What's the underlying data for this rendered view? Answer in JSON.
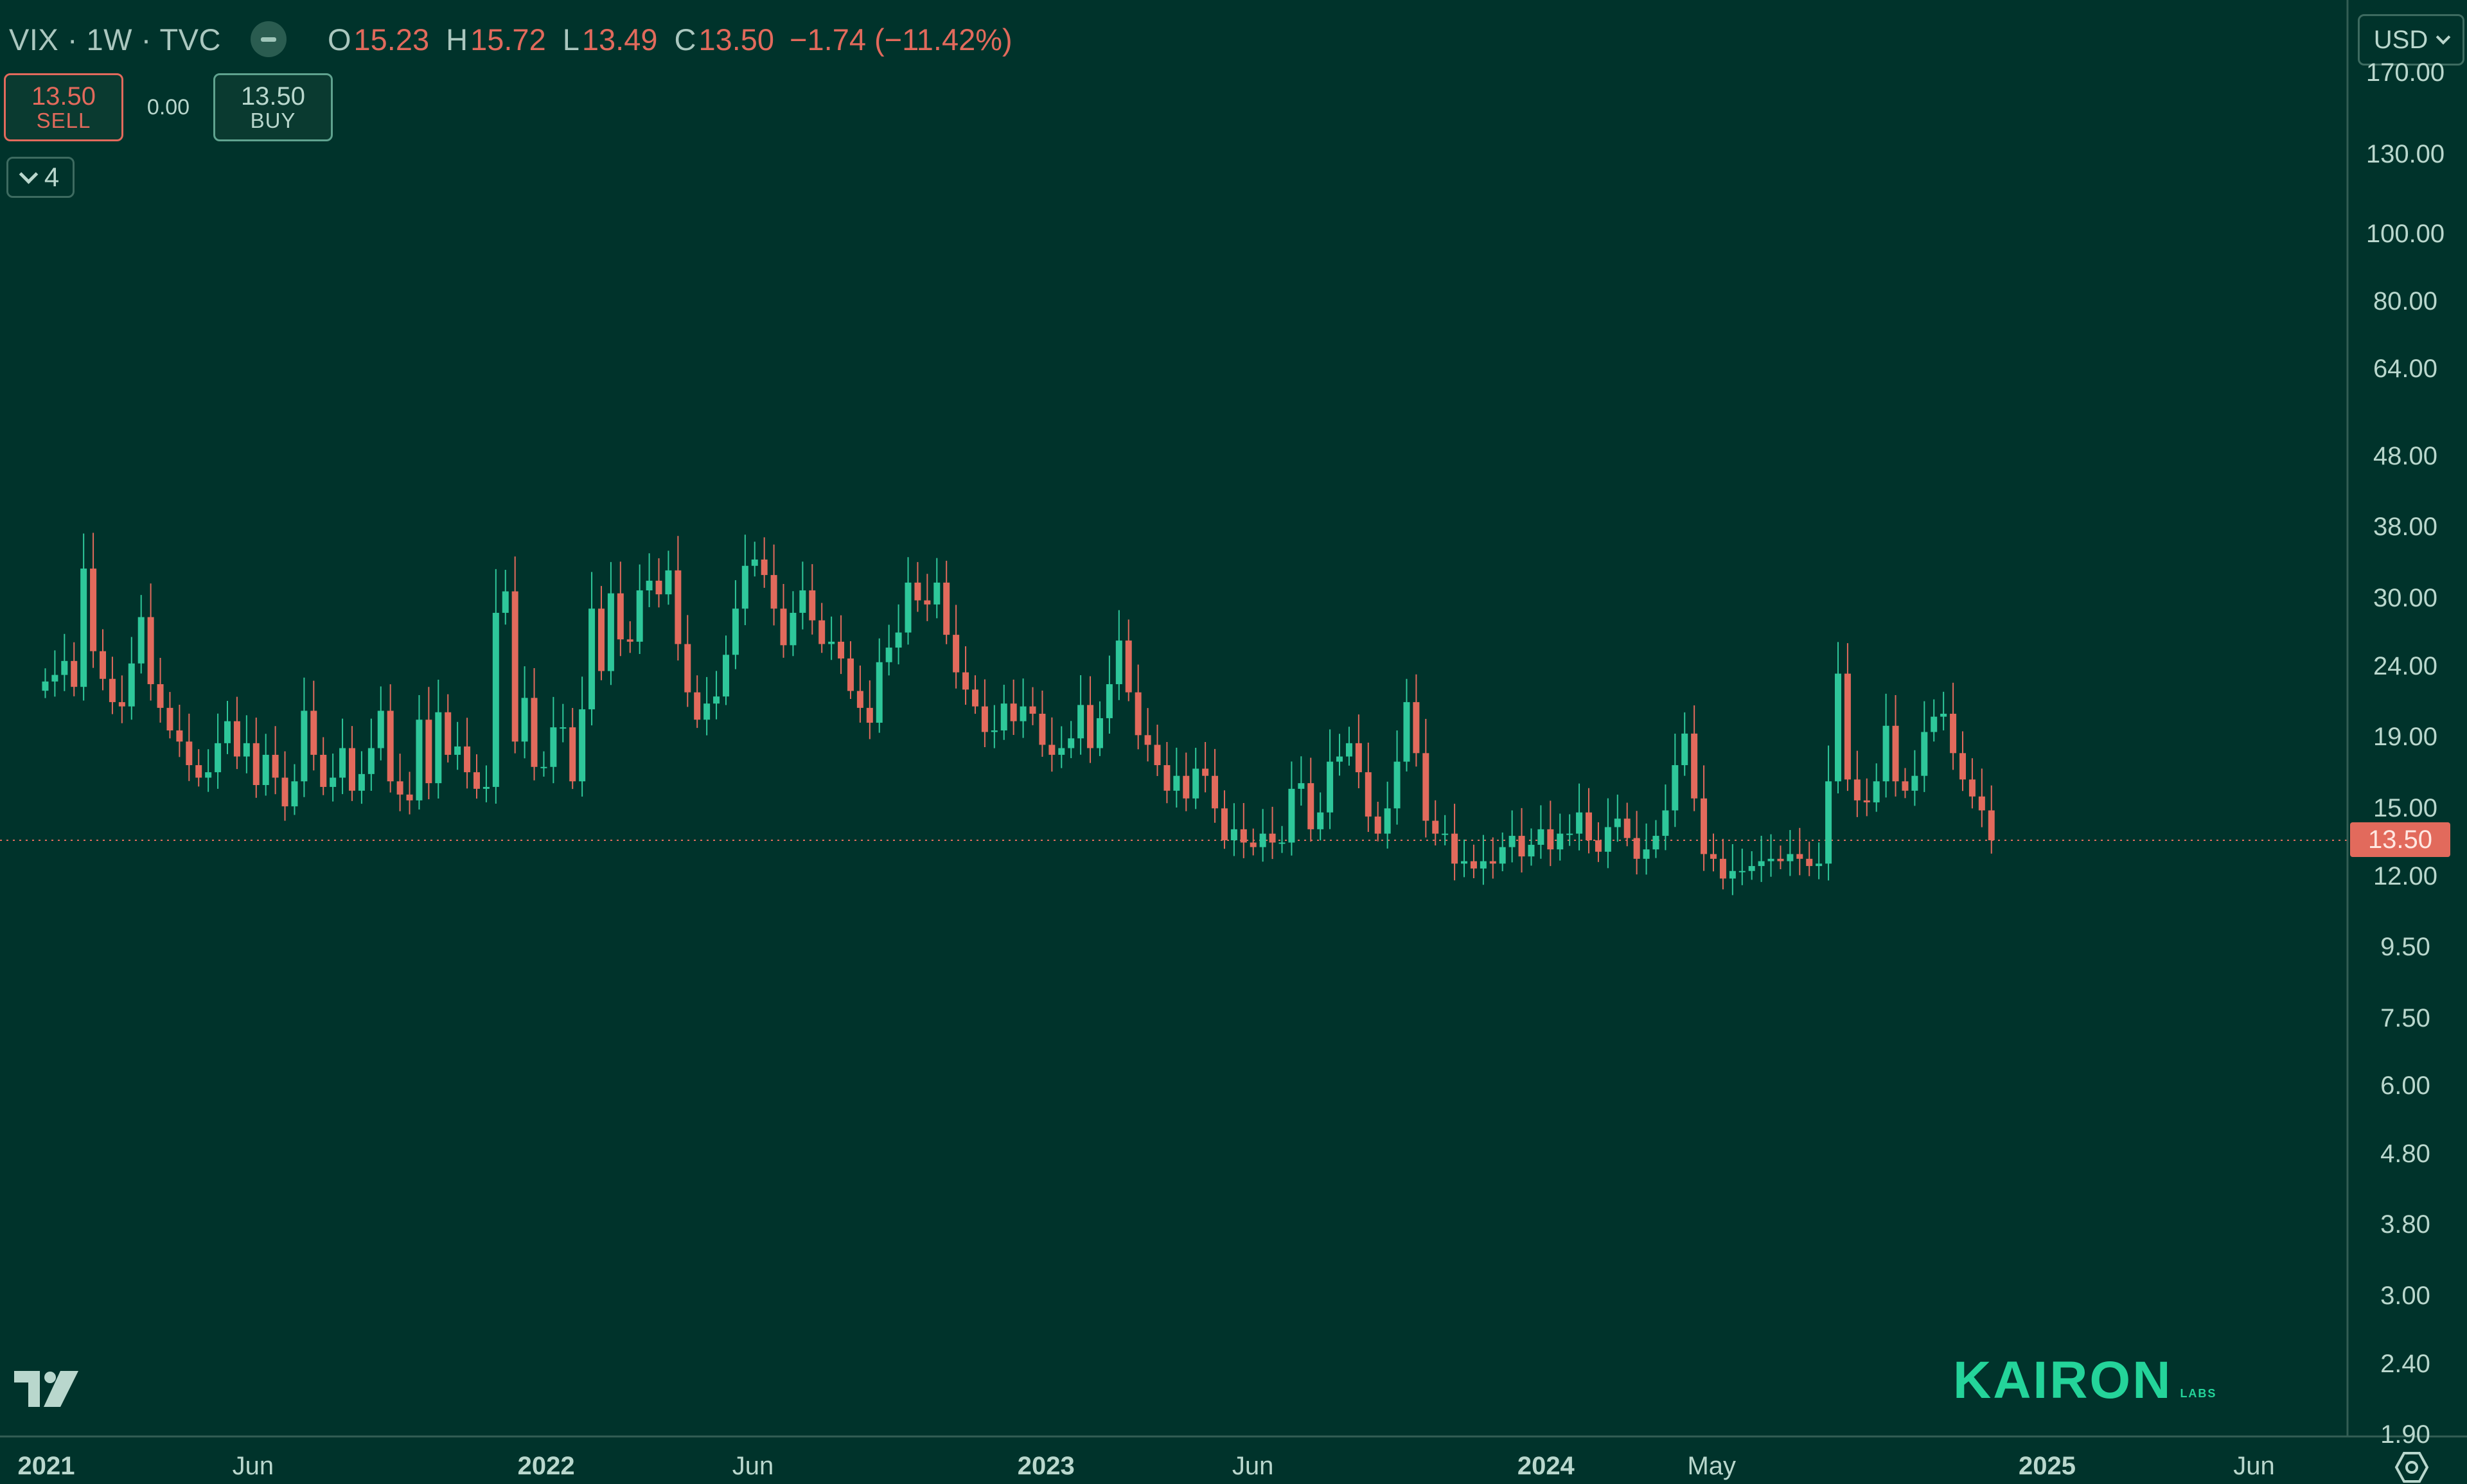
{
  "header": {
    "symbol": "VIX · 1W · TVC",
    "ohlc": [
      {
        "key": "O",
        "value": "15.23"
      },
      {
        "key": "H",
        "value": "15.72"
      },
      {
        "key": "L",
        "value": "13.49"
      },
      {
        "key": "C",
        "value": "13.50"
      }
    ],
    "change": "−1.74 (−11.42%)"
  },
  "trade": {
    "sell_price": "13.50",
    "sell_label": "SELL",
    "spread": "0.00",
    "buy_price": "13.50",
    "buy_label": "BUY"
  },
  "indicators_count": "4",
  "currency": "USD",
  "brand": {
    "name": "KAIRON",
    "sub": "LABS"
  },
  "colors": {
    "background": "#00332b",
    "up": "#2ec79a",
    "down": "#e26a5c",
    "text": "#b9d7cd"
  },
  "icons": {
    "tradingview_logo": "tradingview-logo-icon",
    "settings": "gear-icon",
    "collapse": "minus-icon",
    "chevron": "chevron-down-icon"
  },
  "chart_data": {
    "type": "candlestick",
    "symbol": "VIX",
    "interval": "1W",
    "y_scale": "log",
    "y_ticks": [
      "170.00",
      "130.00",
      "100.00",
      "80.00",
      "64.00",
      "48.00",
      "38.00",
      "30.00",
      "24.00",
      "19.00",
      "15.00",
      "12.00",
      "9.50",
      "7.50",
      "6.00",
      "4.80",
      "3.80",
      "3.00",
      "2.40",
      "1.90"
    ],
    "x_ticks": [
      {
        "label": "2021",
        "date": "2021-01-01",
        "year": true
      },
      {
        "label": "Jun",
        "date": "2021-06-01",
        "year": false
      },
      {
        "label": "2022",
        "date": "2022-01-01",
        "year": true
      },
      {
        "label": "Jun",
        "date": "2022-06-01",
        "year": false
      },
      {
        "label": "2023",
        "date": "2023-01-01",
        "year": true
      },
      {
        "label": "Jun",
        "date": "2023-06-01",
        "year": false
      },
      {
        "label": "2024",
        "date": "2024-01-01",
        "year": true
      },
      {
        "label": "May",
        "date": "2024-05-01",
        "year": false
      },
      {
        "label": "2025",
        "date": "2025-01-01",
        "year": true
      },
      {
        "label": "Jun",
        "date": "2025-06-01",
        "year": false
      }
    ],
    "last_price": "13.50",
    "first_week": "2020-12-28",
    "closes": [
      22.8,
      23.3,
      24.4,
      22.4,
      33.1,
      25.2,
      23.0,
      21.3,
      21.0,
      24.2,
      28.2,
      22.6,
      20.9,
      19.4,
      18.7,
      17.3,
      16.6,
      16.9,
      18.6,
      20.0,
      17.8,
      18.6,
      16.2,
      17.9,
      16.6,
      15.1,
      16.4,
      20.7,
      17.9,
      16.1,
      16.6,
      18.3,
      15.9,
      16.8,
      18.3,
      20.7,
      16.4,
      15.7,
      15.4,
      20.1,
      16.3,
      20.6,
      17.9,
      18.4,
      16.9,
      16.0,
      16.1,
      28.6,
      30.7,
      18.7,
      21.6,
      17.2,
      17.2,
      19.6,
      19.6,
      16.4,
      20.8,
      29.0,
      23.6,
      30.5,
      26.2,
      26.0,
      30.8,
      31.8,
      30.4,
      32.9,
      25.8,
      22.0,
      20.1,
      21.2,
      21.7,
      24.9,
      29.0,
      33.4,
      34.1,
      32.4,
      29.0,
      25.7,
      28.6,
      30.8,
      27.9,
      25.8,
      26.0,
      24.6,
      22.1,
      20.9,
      19.9,
      24.3,
      25.5,
      26.8,
      31.6,
      29.8,
      29.4,
      31.6,
      26.6,
      23.5,
      22.2,
      21.0,
      19.3,
      19.4,
      21.2,
      20.0,
      21.0,
      20.5,
      18.5,
      17.9,
      18.3,
      18.9,
      21.1,
      18.3,
      20.2,
      22.6,
      26.1,
      22.0,
      19.1,
      18.5,
      17.3,
      15.9,
      16.7,
      15.5,
      17.1,
      16.7,
      15.0,
      13.5,
      14.0,
      13.4,
      13.2,
      13.8,
      13.4,
      13.4,
      16.0,
      16.3,
      14.0,
      14.8,
      17.5,
      17.8,
      18.6,
      16.9,
      14.6,
      13.8,
      15.0,
      17.5,
      21.3,
      18.0,
      14.4,
      13.8,
      13.8,
      12.5,
      12.6,
      12.3,
      12.6,
      12.5,
      13.2,
      13.7,
      12.8,
      13.3,
      14.0,
      13.1,
      13.8,
      13.8,
      14.8,
      13.5,
      13.0,
      14.1,
      14.5,
      13.6,
      12.7,
      13.1,
      13.7,
      14.9,
      17.3,
      19.2,
      15.5,
      12.9,
      12.7,
      11.9,
      12.2,
      12.2,
      12.4,
      12.6,
      12.7,
      12.6,
      12.9,
      12.7,
      12.4,
      12.5,
      16.4,
      23.4,
      16.5,
      15.4,
      15.3,
      16.4,
      19.7,
      16.4,
      15.9,
      16.7,
      19.3,
      20.3,
      20.5,
      18.0,
      16.5,
      15.6,
      14.9,
      13.5
    ]
  }
}
